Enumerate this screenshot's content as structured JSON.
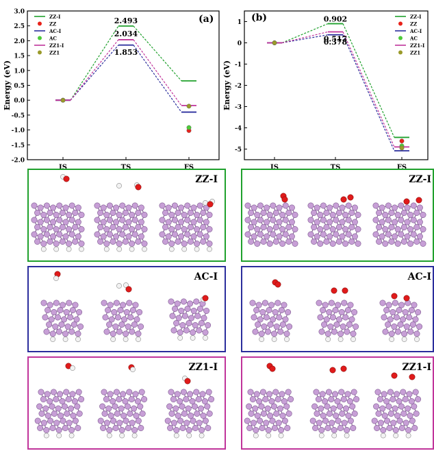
{
  "chart_data": [
    {
      "type": "line",
      "panel_label": "(a)",
      "ylabel": "Energy (eV)",
      "categories": [
        "IS",
        "TS",
        "FS"
      ],
      "ylim": [
        -2.0,
        3.0
      ],
      "y_ticks": [
        "-2.0",
        "-1.5",
        "-1.0",
        "-0.5",
        "0.0",
        "0.5",
        "1.0",
        "1.5",
        "2.0",
        "2.5",
        "3.0"
      ],
      "legend_position": "top-left",
      "series": [
        {
          "name": "ZZ-I",
          "kind": "path",
          "color": "#1fa02c",
          "values": [
            0.0,
            2.493,
            0.65
          ]
        },
        {
          "name": "ZZ",
          "kind": "point",
          "color": "#e8221a",
          "values": [
            0.0,
            null,
            -1.02
          ]
        },
        {
          "name": "AC-I",
          "kind": "path",
          "color": "#2a2d9c",
          "values": [
            0.0,
            1.853,
            -0.4
          ]
        },
        {
          "name": "AC",
          "kind": "point",
          "color": "#4ecb3a",
          "values": [
            0.0,
            null,
            -0.92
          ]
        },
        {
          "name": "ZZ1-I",
          "kind": "path",
          "color": "#c0339a",
          "values": [
            0.0,
            2.034,
            -0.18
          ]
        },
        {
          "name": "ZZ1",
          "kind": "point",
          "color": "#9a9a2a",
          "values": [
            0.0,
            null,
            -0.2
          ]
        }
      ],
      "annotations": [
        "2.493",
        "2.034",
        "1.853"
      ]
    },
    {
      "type": "line",
      "panel_label": "(b)",
      "ylabel": "Energy (eV)",
      "categories": [
        "IS",
        "TS",
        "FS"
      ],
      "ylim": [
        -5.5,
        1.5
      ],
      "y_ticks": [
        "-5",
        "-4",
        "-3",
        "-2",
        "-1",
        "0",
        "1"
      ],
      "legend_position": "top-right",
      "series": [
        {
          "name": "ZZ-I",
          "kind": "path",
          "color": "#1fa02c",
          "values": [
            0.0,
            0.902,
            -4.45
          ]
        },
        {
          "name": "ZZ",
          "kind": "point",
          "color": "#e8221a",
          "values": [
            0.0,
            null,
            -4.62
          ]
        },
        {
          "name": "AC-I",
          "kind": "path",
          "color": "#2a2d9c",
          "values": [
            0.0,
            0.378,
            -5.08
          ]
        },
        {
          "name": "AC",
          "kind": "point",
          "color": "#4ecb3a",
          "values": [
            0.0,
            null,
            -4.85
          ]
        },
        {
          "name": "ZZ1-I",
          "kind": "path",
          "color": "#c0339a",
          "values": [
            0.0,
            0.517,
            -4.9
          ]
        },
        {
          "name": "ZZ1",
          "kind": "point",
          "color": "#9a9a2a",
          "values": [
            0.0,
            null,
            -4.95
          ]
        }
      ],
      "annotations": [
        "0.902",
        "0.517",
        "0.378"
      ]
    }
  ],
  "panels": [
    {
      "label": "ZZ-I",
      "color": "#1fa02c",
      "side": "left"
    },
    {
      "label": "ZZ-I",
      "color": "#1fa02c",
      "side": "right"
    },
    {
      "label": "AC-I",
      "color": "#2a2d9c",
      "side": "left"
    },
    {
      "label": "AC-I",
      "color": "#2a2d9c",
      "side": "right"
    },
    {
      "label": "ZZ1-I",
      "color": "#c0339a",
      "side": "left"
    },
    {
      "label": "ZZ1-I",
      "color": "#c0339a",
      "side": "right"
    }
  ],
  "atom_colors": {
    "carbon": "#c79fd6",
    "carbon_edge": "#7d5a8f",
    "oxygen": "#e01b1b",
    "hydrogen": "#f2f2f2"
  }
}
